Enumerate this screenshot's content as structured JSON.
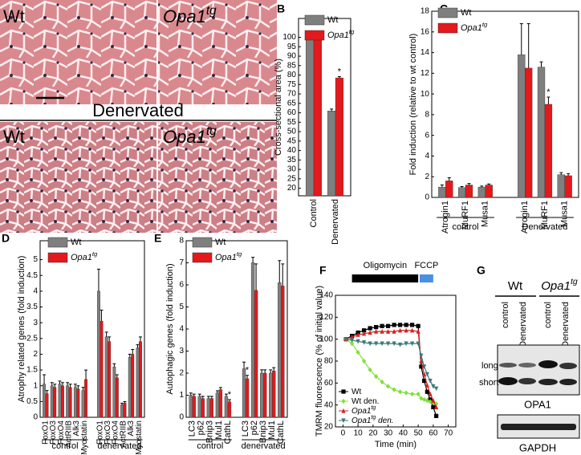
{
  "panel_a": {
    "label": "A",
    "images": [
      {
        "label": "Wt"
      },
      {
        "label": "Opa1",
        "label_sup": "tg"
      },
      {
        "label": "Wt"
      },
      {
        "label": "Opa1",
        "label_sup": "tg"
      }
    ],
    "section": "Denervated"
  },
  "panel_g": {
    "label": "G",
    "groups": [
      {
        "label": "Wt"
      },
      {
        "label": "Opa1",
        "label_sup": "tg"
      }
    ],
    "lanes": [
      "control",
      "Denervated",
      "control",
      "Denervated"
    ],
    "bands": [
      "long",
      "short"
    ],
    "blots": [
      "OPA1",
      "GAPDH"
    ]
  },
  "chart_data": [
    {
      "type": "bar",
      "panel_label": "B",
      "y_label": "Cross-sectional area (%)",
      "categories": [
        "Control",
        "Denervated"
      ],
      "series": [
        {
          "name": "Wt",
          "color": "#7f7f7f",
          "values": [
            100,
            61
          ],
          "errors": [
            1,
            1
          ]
        },
        {
          "name": "Opa1",
          "name_sup": "tg",
          "italic": true,
          "color": "#e3191c",
          "values": [
            100,
            78.5
          ],
          "errors": [
            1,
            0.7
          ],
          "markers": [
            null,
            "*"
          ]
        }
      ],
      "ylim": [
        16,
        110
      ],
      "yticks": [
        20,
        25,
        30,
        35,
        40,
        45,
        50,
        55,
        60,
        65,
        70,
        75,
        80,
        85,
        90,
        95,
        100
      ],
      "legend": "upper left"
    },
    {
      "type": "bar",
      "panel_label": "C",
      "y_label": "Fold induction (relative to wt control)",
      "categories": [
        "Atrogin1",
        "MuRF1",
        "Musa1",
        "Atrogin1",
        "MuRF1",
        "Musa1"
      ],
      "groups": [
        "control",
        "Denervated"
      ],
      "series": [
        {
          "name": "Wt",
          "color": "#7f7f7f",
          "values": [
            1.0,
            0.95,
            1.0,
            13.8,
            12.6,
            2.2
          ],
          "errors": [
            0.2,
            0.1,
            0.1,
            3,
            0.5,
            0.2
          ]
        },
        {
          "name": "Opa1",
          "name_sup": "tg",
          "italic": true,
          "color": "#e3191c",
          "values": [
            1.6,
            1.2,
            1.2,
            12.5,
            9.0,
            2.1
          ],
          "errors": [
            0.3,
            0.15,
            0.1,
            4.3,
            0.7,
            0.2
          ],
          "markers": [
            null,
            null,
            null,
            null,
            "*",
            null
          ]
        }
      ],
      "ylim": [
        0,
        18
      ],
      "yticks": [
        0,
        2,
        4,
        6,
        8,
        10,
        12,
        14,
        16,
        18
      ],
      "legend": "upper left"
    },
    {
      "type": "bar",
      "panel_label": "D",
      "y_label": "Atrophy related genes (fold induction)",
      "categories": [
        "FoxO1",
        "FoxO3",
        "FoxO4",
        "ActRIIB",
        "Alk3",
        "Myostatin",
        "FoxO1",
        "FoxO3",
        "FoxO4",
        "ActRIIB",
        "Alk3",
        "Myostatin"
      ],
      "groups": [
        "control",
        "denervated"
      ],
      "series": [
        {
          "name": "Wt",
          "color": "#7f7f7f",
          "values": [
            1.05,
            1.0,
            1.05,
            1.0,
            0.95,
            0.85,
            4.0,
            2.55,
            1.6,
            0.4,
            1.9,
            2.2
          ],
          "errors": [
            0.3,
            0.1,
            0.1,
            0.1,
            0.1,
            0.1,
            0.7,
            0.15,
            0.1,
            0.05,
            0.1,
            0.1
          ]
        },
        {
          "name": "Opa1",
          "name_sup": "tg",
          "italic": true,
          "color": "#e3191c",
          "values": [
            0.75,
            0.95,
            1.0,
            0.95,
            0.9,
            1.2,
            3.05,
            2.4,
            1.25,
            0.45,
            2.0,
            2.4
          ],
          "errors": [
            0.1,
            0.1,
            0.1,
            0.1,
            0.1,
            0.3,
            0.35,
            0.15,
            0.1,
            0.05,
            0.15,
            0.15
          ]
        }
      ],
      "ylim": [
        0,
        5.6
      ],
      "yticks": [
        0,
        0.5,
        1,
        1.5,
        2,
        2.5,
        3,
        3.5,
        4,
        4.5,
        5
      ],
      "legend": "upper right"
    },
    {
      "type": "bar",
      "panel_label": "E",
      "y_label": "Autophagic genes (fold induction)",
      "categories": [
        "LC3",
        "p62",
        "Bnip3",
        "Mul1",
        "CathL",
        "LC3",
        "p62",
        "Bnip3",
        "Mul1",
        "CathL"
      ],
      "groups": [
        "control",
        "denervated"
      ],
      "series": [
        {
          "name": "Wt",
          "color": "#7f7f7f",
          "values": [
            1.0,
            0.95,
            0.85,
            1.1,
            0.95,
            2.2,
            7.0,
            2.0,
            2.0,
            6.1
          ],
          "errors": [
            0.1,
            0.1,
            0.1,
            0.1,
            0.1,
            0.3,
            0.25,
            0.15,
            0.15,
            1.0
          ]
        },
        {
          "name": "Opa1",
          "name_sup": "tg",
          "italic": true,
          "color": "#e3191c",
          "values": [
            0.95,
            0.85,
            0.85,
            1.25,
            0.7,
            1.75,
            5.75,
            2.0,
            2.1,
            5.95
          ],
          "errors": [
            0.1,
            0.1,
            0.1,
            0.1,
            0.1,
            0.15,
            1.2,
            0.15,
            0.15,
            1.0
          ],
          "markers": [
            null,
            null,
            null,
            null,
            "*",
            "*",
            null,
            null,
            null,
            null
          ]
        }
      ],
      "ylim": [
        0,
        8
      ],
      "yticks": [
        0,
        1,
        2,
        3,
        4,
        5,
        6,
        7,
        8
      ],
      "legend": "upper left"
    },
    {
      "type": "line",
      "panel_label": "F",
      "x_label": "Time (min)",
      "y_label": "TMRM fluorescence (% of initial value)",
      "x": [
        2,
        6,
        10,
        14,
        18,
        22,
        26,
        30,
        34,
        38,
        42,
        46,
        50,
        52,
        54,
        56,
        58,
        60,
        62
      ],
      "series": [
        {
          "name": "Wt",
          "color": "#000000",
          "marker": "square",
          "values": [
            100,
            103,
            106,
            108,
            110,
            111,
            112,
            112,
            113,
            113,
            113,
            113,
            112,
            75,
            62,
            52,
            45,
            38,
            30
          ]
        },
        {
          "name": "Wt den.",
          "color": "#7fe03a",
          "marker": "diamond",
          "values": [
            100,
            96,
            88,
            80,
            72,
            66,
            61,
            57,
            54,
            52,
            51,
            50,
            50,
            46,
            45,
            44,
            43,
            42,
            41
          ]
        },
        {
          "name": "Opa1",
          "name_sup": "tg",
          "italic": true,
          "color": "#d42020",
          "marker": "triangle-up",
          "values": [
            100,
            102,
            104,
            105,
            106,
            107,
            107,
            107,
            107,
            108,
            108,
            108,
            107,
            80,
            68,
            58,
            50,
            44,
            38
          ]
        },
        {
          "name": "Opa1",
          "name_sup": "tg",
          "name_suffix": " den.",
          "italic": true,
          "color": "#3a7a78",
          "marker": "triangle-down",
          "values": [
            100,
            99,
            98,
            97,
            96,
            96,
            96,
            96,
            96,
            95,
            96,
            96,
            96,
            85,
            75,
            68,
            62,
            57,
            55
          ]
        }
      ],
      "annotations": [
        {
          "text": "Oligomycin",
          "span": [
            6,
            50
          ],
          "color": "#000000"
        },
        {
          "text": "FCCP",
          "span": [
            51,
            60
          ],
          "color": "#4a90e2"
        }
      ],
      "xlim": [
        -5,
        75
      ],
      "xticks": [
        0,
        10,
        20,
        30,
        40,
        50,
        60,
        70
      ],
      "ylim": [
        20,
        140
      ],
      "yticks": [
        20,
        40,
        60,
        80,
        100,
        120,
        140
      ],
      "legend": "lower left"
    }
  ]
}
